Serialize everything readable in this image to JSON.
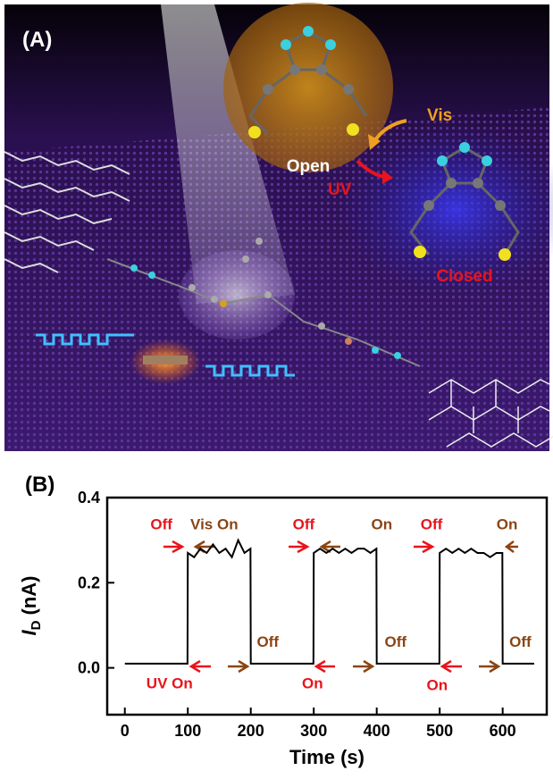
{
  "illustration": {
    "panel_label": "(A)",
    "open_label": "Open",
    "closed_label": "Closed",
    "vis_label": "Vis",
    "uv_label": "UV"
  },
  "chart_data": {
    "type": "line",
    "panel_label": "(B)",
    "x_label": "Time (s)",
    "y_label": {
      "main": "I",
      "sub": "D",
      "unit": "(nA)"
    },
    "xlim": [
      -28,
      670
    ],
    "ylim": [
      -0.11,
      0.4
    ],
    "xticks": [
      0,
      100,
      200,
      300,
      400,
      500,
      600
    ],
    "yticks": [
      {
        "value": 0,
        "label": "0.0"
      },
      {
        "value": 0.2,
        "label": "0.2"
      },
      {
        "value": 0.4,
        "label": "0.4"
      }
    ],
    "series": [
      {
        "color": "#000000",
        "x": [
          0,
          99.5,
          100,
          110,
          120,
          130,
          140,
          150,
          160,
          170,
          180,
          190,
          199.5,
          200,
          299.5,
          300,
          310,
          320,
          330,
          340,
          350,
          360,
          370,
          380,
          390,
          399.5,
          400,
          499.5,
          500,
          510,
          520,
          530,
          540,
          550,
          560,
          570,
          580,
          590,
          599.5,
          600,
          650
        ],
        "values": [
          0.01,
          0.01,
          0.27,
          0.26,
          0.28,
          0.27,
          0.29,
          0.27,
          0.28,
          0.26,
          0.3,
          0.27,
          0.28,
          0.01,
          0.01,
          0.27,
          0.28,
          0.27,
          0.28,
          0.27,
          0.28,
          0.27,
          0.28,
          0.28,
          0.27,
          0.28,
          0.01,
          0.01,
          0.27,
          0.28,
          0.27,
          0.28,
          0.27,
          0.28,
          0.27,
          0.27,
          0.26,
          0.27,
          0.27,
          0.01,
          0.01
        ]
      }
    ],
    "annotations": [
      {
        "text": "Off",
        "color": "#e8141c",
        "x": 58,
        "y": 0.325
      },
      {
        "text": "Vis On",
        "color": "#8b4513",
        "x": 142,
        "y": 0.325
      },
      {
        "text": "Off",
        "color": "#e8141c",
        "x": 284,
        "y": 0.325
      },
      {
        "text": "On",
        "color": "#8b4513",
        "x": 408,
        "y": 0.325
      },
      {
        "text": "Off",
        "color": "#e8141c",
        "x": 487,
        "y": 0.325
      },
      {
        "text": "On",
        "color": "#8b4513",
        "x": 607,
        "y": 0.325
      },
      {
        "text": "Off",
        "color": "#8b4513",
        "x": 227,
        "y": 0.05
      },
      {
        "text": "Off",
        "color": "#8b4513",
        "x": 430,
        "y": 0.05
      },
      {
        "text": "Off",
        "color": "#8b4513",
        "x": 628,
        "y": 0.05
      },
      {
        "text": "UV On",
        "color": "#e8141c",
        "x": 71,
        "y": -0.048
      },
      {
        "text": "On",
        "color": "#e8141c",
        "x": 298,
        "y": -0.048
      },
      {
        "text": "On",
        "color": "#e8141c",
        "x": 496,
        "y": -0.052
      }
    ]
  }
}
